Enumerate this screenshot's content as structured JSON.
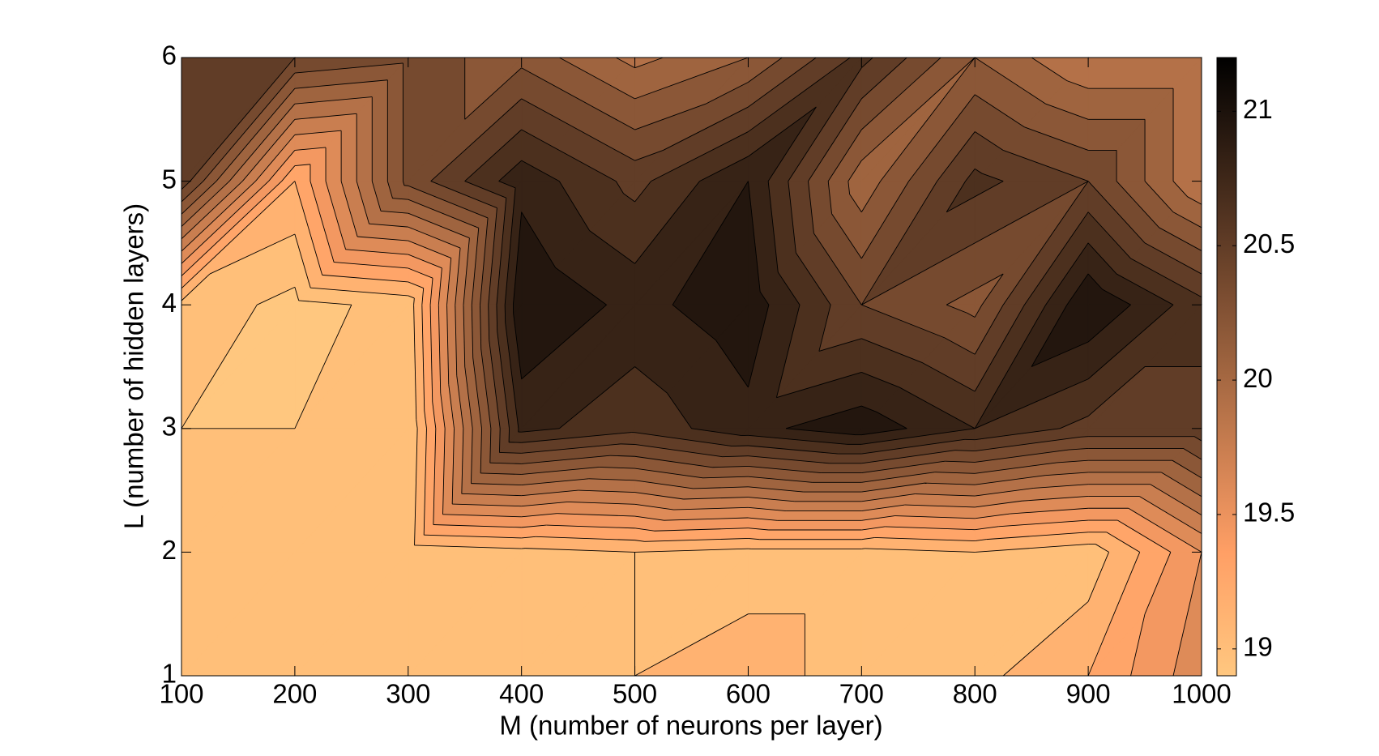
{
  "chart_data": {
    "type": "contour",
    "x": [
      100,
      200,
      300,
      400,
      500,
      600,
      700,
      800,
      900,
      1000
    ],
    "y": [
      1,
      2,
      3,
      4,
      5,
      6
    ],
    "z": [
      [
        19.0,
        19.0,
        19.0,
        19.05,
        19.15,
        19.2,
        19.1,
        19.1,
        19.3,
        19.7
      ],
      [
        19.0,
        19.0,
        19.05,
        19.1,
        19.15,
        19.1,
        19.1,
        19.15,
        19.05,
        19.6
      ],
      [
        19.0,
        19.0,
        19.0,
        20.85,
        20.7,
        20.9,
        21.05,
        20.8,
        20.6,
        20.6
      ],
      [
        19.1,
        18.95,
        19.05,
        21.1,
        20.9,
        21.05,
        20.5,
        20.3,
        21.1,
        20.7
      ],
      [
        20.6,
        19.3,
        20.4,
        20.9,
        20.6,
        20.95,
        20.1,
        20.7,
        20.5,
        19.9
      ],
      [
        20.6,
        20.5,
        20.4,
        20.3,
        20.0,
        20.2,
        20.7,
        20.2,
        19.9,
        19.9
      ]
    ],
    "levels": [
      19.0,
      19.15,
      19.3,
      19.45,
      19.6,
      19.75,
      19.9,
      20.05,
      20.2,
      20.35,
      20.5,
      20.65,
      20.8,
      20.95,
      21.1
    ],
    "colormap": "copper",
    "colormap_reversed": true,
    "xlim": [
      100,
      1000
    ],
    "ylim": [
      1,
      6
    ],
    "xticks": [
      100,
      200,
      300,
      400,
      500,
      600,
      700,
      800,
      900,
      1000
    ],
    "yticks": [
      1,
      2,
      3,
      4,
      5,
      6
    ],
    "clim": [
      18.9,
      21.2
    ],
    "cticks": [
      19,
      19.5,
      20,
      20.5,
      21
    ],
    "xlabel": "M (number of neurons per layer)",
    "ylabel": "L (number of hidden layers)"
  }
}
